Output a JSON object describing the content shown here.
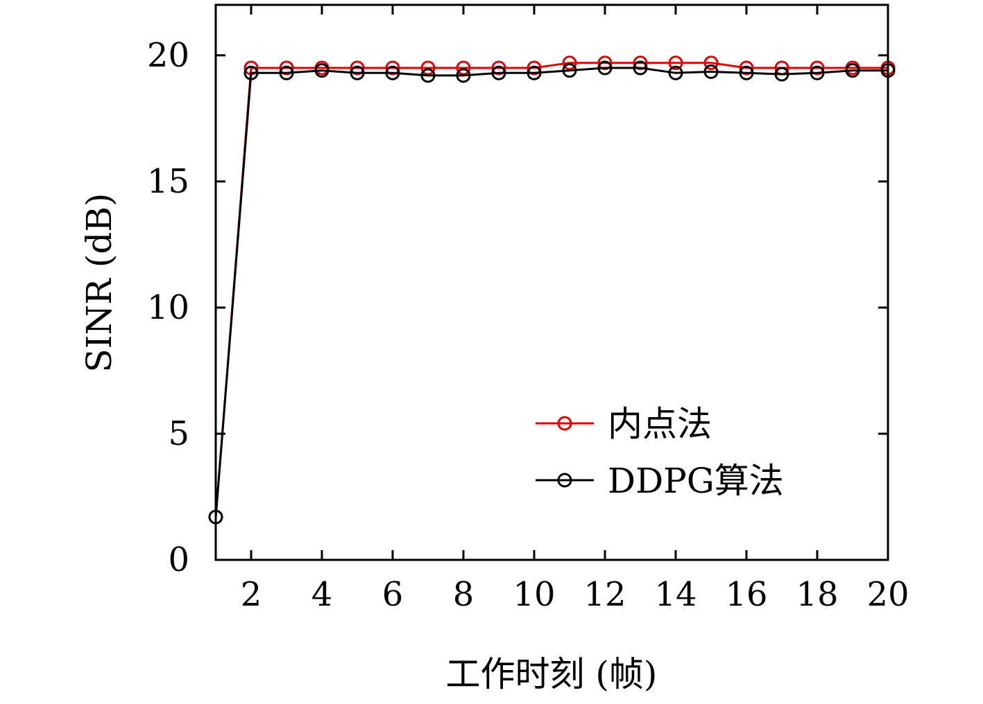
{
  "chart_data": {
    "type": "line",
    "xlabel": "工作时刻 (帧)",
    "ylabel": "SINR (dB)",
    "xlim": [
      1,
      20
    ],
    "ylim": [
      0,
      22
    ],
    "xticks": [
      2,
      4,
      6,
      8,
      10,
      12,
      14,
      16,
      18,
      20
    ],
    "yticks": [
      0,
      5,
      10,
      15,
      20
    ],
    "grid": false,
    "legend_position": "bottom-right",
    "x": [
      1,
      2,
      3,
      4,
      5,
      6,
      7,
      8,
      9,
      10,
      11,
      12,
      13,
      14,
      15,
      16,
      17,
      18,
      19,
      20
    ],
    "series": [
      {
        "name": "内点法",
        "color": "#e00000",
        "marker": "circle",
        "values": [
          1.7,
          19.5,
          19.5,
          19.5,
          19.5,
          19.5,
          19.5,
          19.5,
          19.5,
          19.5,
          19.7,
          19.7,
          19.7,
          19.7,
          19.7,
          19.5,
          19.5,
          19.5,
          19.5,
          19.5
        ]
      },
      {
        "name": "DDPG算法",
        "color": "#000000",
        "marker": "circle",
        "values": [
          1.7,
          19.3,
          19.3,
          19.4,
          19.3,
          19.3,
          19.2,
          19.2,
          19.3,
          19.3,
          19.4,
          19.5,
          19.5,
          19.3,
          19.35,
          19.3,
          19.25,
          19.3,
          19.4,
          19.4
        ]
      }
    ]
  }
}
